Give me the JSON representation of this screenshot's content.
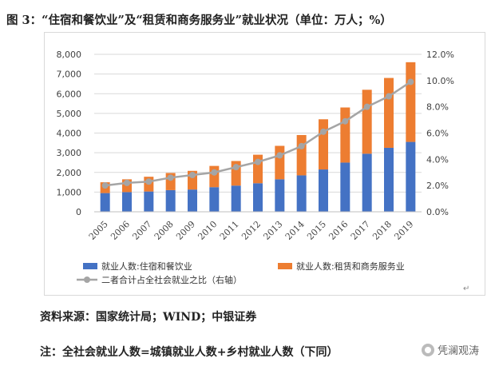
{
  "title": "图 3：“住宿和餐饮业”及“租赁和商务服务业”就业状况（单位：万人；%）",
  "source_text": "资料来源：国家统计局；WIND；中银证券",
  "note_text": "注：全社会就业人数=城镇就业人数+乡村就业人数（下同）",
  "watermark_text": "凭澜观涛",
  "colors": {
    "bar_bottom": "#4472C4",
    "bar_top": "#ED7D31",
    "line": "#A5A5A5",
    "grid": "#d9d9d9",
    "text": "#404040"
  },
  "chart_data": {
    "type": "bar",
    "stacked": true,
    "categories": [
      "2005",
      "2006",
      "2007",
      "2008",
      "2009",
      "2010",
      "2011",
      "2012",
      "2013",
      "2014",
      "2015",
      "2016",
      "2017",
      "2018",
      "2019"
    ],
    "series": [
      {
        "name": "就业人数:住宿和餐饮业",
        "type": "bar",
        "axis": "left",
        "values": [
          950,
          1000,
          1030,
          1100,
          1130,
          1250,
          1330,
          1450,
          1650,
          1850,
          2150,
          2500,
          2950,
          3250,
          3550
        ]
      },
      {
        "name": "就业人数:租赁和商务服务业",
        "type": "bar",
        "axis": "left",
        "values": [
          550,
          650,
          750,
          870,
          950,
          1080,
          1250,
          1450,
          1700,
          2050,
          2550,
          2800,
          3250,
          3550,
          4050
        ]
      },
      {
        "name": "二者合计占全社会就业之比（右轴）",
        "type": "line",
        "axis": "right",
        "values": [
          2.0,
          2.2,
          2.3,
          2.6,
          2.8,
          3.0,
          3.4,
          3.8,
          4.3,
          5.0,
          6.1,
          6.9,
          8.0,
          8.8,
          9.9
        ]
      }
    ],
    "y_left": {
      "min": 0,
      "max": 8000,
      "ticks": [
        "0",
        "1,000",
        "2,000",
        "3,000",
        "4,000",
        "5,000",
        "6,000",
        "7,000",
        "8,000"
      ]
    },
    "y_right": {
      "min": 0,
      "max": 12,
      "ticks": [
        "0.0%",
        "2.0%",
        "4.0%",
        "6.0%",
        "8.0%",
        "10.0%",
        "12.0%"
      ]
    },
    "grid": true,
    "legend_position": "bottom"
  }
}
